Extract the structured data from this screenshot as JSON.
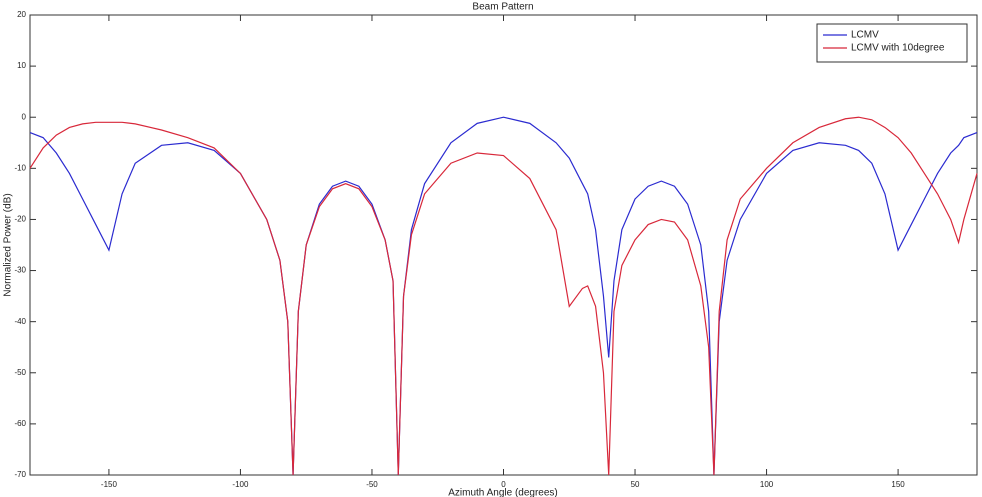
{
  "chart_data": {
    "type": "line",
    "title": "Beam Pattern",
    "x_label": "Azimuth Angle (degrees)",
    "y_label": "Normalized Power (dB)",
    "xlim": [
      -180,
      180
    ],
    "ylim": [
      -70,
      20
    ],
    "xticks": [
      -150,
      -100,
      -50,
      0,
      50,
      100,
      150
    ],
    "yticks": [
      -70,
      -60,
      -50,
      -40,
      -30,
      -20,
      -10,
      0,
      10,
      20
    ],
    "grid": false,
    "legend_position": "top-right",
    "x": [
      -180,
      -175,
      -170,
      -165,
      -160,
      -155,
      -150,
      -145,
      -140,
      -130,
      -120,
      -110,
      -100,
      -90,
      -85,
      -82,
      -80,
      -78,
      -75,
      -70,
      -65,
      -60,
      -55,
      -50,
      -45,
      -42,
      -40,
      -38,
      -35,
      -30,
      -20,
      -10,
      0,
      10,
      20,
      25,
      30,
      32,
      35,
      38,
      40,
      42,
      45,
      50,
      55,
      60,
      65,
      70,
      75,
      78,
      80,
      82,
      85,
      90,
      100,
      110,
      120,
      130,
      135,
      140,
      145,
      150,
      155,
      160,
      165,
      170,
      173,
      175,
      180
    ],
    "series": [
      {
        "name": "LCMV",
        "color": "#2b2bd0",
        "values": [
          -3,
          -4,
          -7,
          -11,
          -16,
          -21,
          -26,
          -15,
          -9,
          -5.5,
          -5,
          -6.5,
          -11,
          -20,
          -28,
          -40,
          -70,
          -38,
          -25,
          -17,
          -13.5,
          -12.5,
          -13.5,
          -17,
          -24,
          -32,
          -70,
          -35,
          -22,
          -13,
          -5,
          -1.2,
          0,
          -1.2,
          -5,
          -8,
          -13,
          -15,
          -22,
          -35,
          -47,
          -32,
          -22,
          -16,
          -13.5,
          -12.5,
          -13.5,
          -17,
          -25,
          -38,
          -70,
          -40,
          -28,
          -20,
          -11,
          -6.5,
          -5,
          -5.5,
          -6.5,
          -9,
          -15,
          -26,
          -21,
          -16,
          -11,
          -7,
          -5.5,
          -4,
          -3
        ]
      },
      {
        "name": "LCMV with 10degree",
        "color": "#d8283a",
        "values": [
          -10,
          -6,
          -3.5,
          -2,
          -1.3,
          -1,
          -1,
          -1,
          -1.3,
          -2.5,
          -4,
          -6,
          -11,
          -20,
          -28,
          -40,
          -70,
          -38,
          -25,
          -17.5,
          -14,
          -13,
          -14,
          -17.5,
          -24,
          -32,
          -70,
          -35,
          -23,
          -15,
          -9,
          -7,
          -7.5,
          -12,
          -22,
          -37,
          -33.5,
          -33,
          -37,
          -50,
          -70,
          -38,
          -29,
          -24,
          -21,
          -20,
          -20.5,
          -24,
          -33,
          -45,
          -70,
          -38,
          -24,
          -16,
          -10,
          -5,
          -2,
          -0.3,
          0,
          -0.5,
          -2,
          -4,
          -7,
          -11,
          -15,
          -20,
          -24.5,
          -20,
          -11
        ]
      }
    ]
  }
}
